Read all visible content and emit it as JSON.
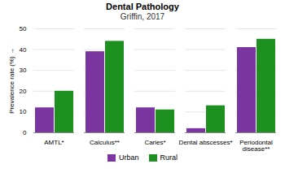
{
  "chart_data": {
    "type": "bar",
    "title": "Dental Pathology",
    "subtitle": "Griffin, 2017",
    "categories": [
      "AMTL*",
      "Calculus**",
      "Caries*",
      "Dental abscesses*",
      "Periodontal\ndisease**"
    ],
    "series": [
      {
        "name": "Urban",
        "color": "#7B35A0",
        "values": [
          12,
          39,
          12,
          2,
          41
        ]
      },
      {
        "name": "Rural",
        "color": "#1E9020",
        "values": [
          20,
          44,
          11,
          13,
          45
        ]
      }
    ],
    "ylabel": "Prevalence rate (%)",
    "ylim": [
      0,
      50
    ],
    "yticks": [
      0,
      10,
      20,
      30,
      40,
      50
    ],
    "grid": true,
    "legend": "bottom"
  }
}
